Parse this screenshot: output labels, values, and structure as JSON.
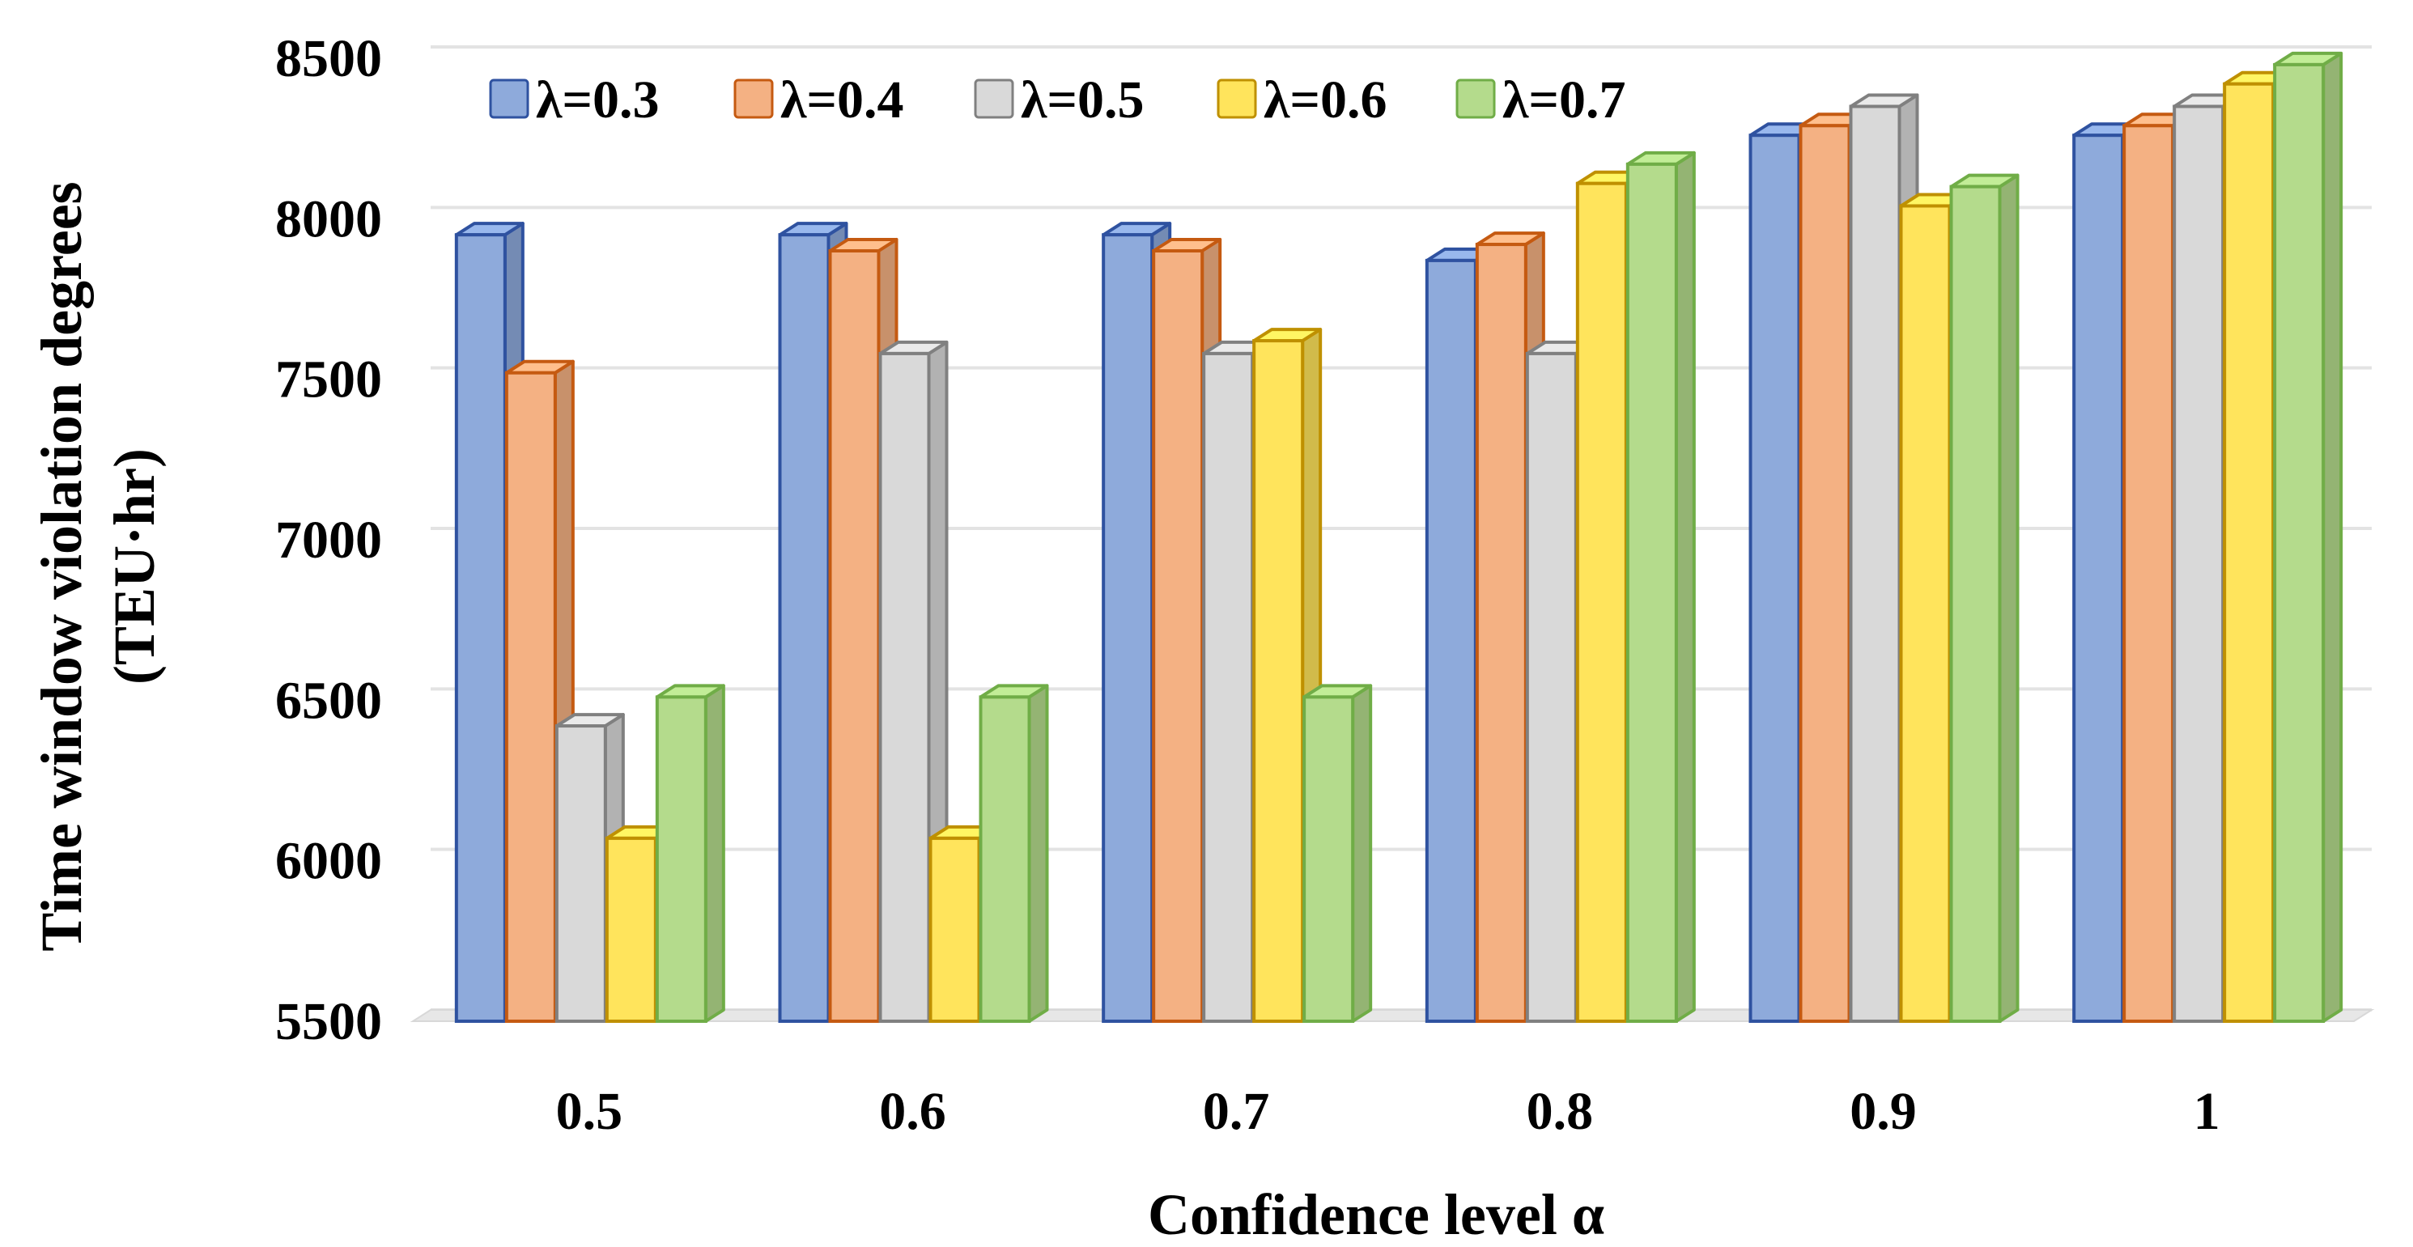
{
  "chart_data": {
    "type": "bar",
    "style": "3d-clustered-column",
    "title": "",
    "xlabel": "Confidence level α",
    "ylabel_line1": "Time window violation degrees",
    "ylabel_line2": "(TEU·hr)",
    "ylim": [
      5500,
      8500
    ],
    "yticks": [
      5500,
      6000,
      6500,
      7000,
      7500,
      8000,
      8500
    ],
    "ytick_labels": [
      "5500",
      "6000",
      "6500",
      "7000",
      "7500",
      "8000",
      "8500"
    ],
    "grid": true,
    "legend_position": "top-left",
    "categories": [
      "0.5",
      "0.6",
      "0.7",
      "0.8",
      "0.9",
      "1"
    ],
    "series": [
      {
        "name": "λ=0.3",
        "color": "#8eaadb",
        "stroke": "#2f52a0",
        "values": [
          7950,
          7950,
          7950,
          7870,
          8260,
          8260
        ]
      },
      {
        "name": "λ=0.4",
        "color": "#f4b183",
        "stroke": "#c55a11",
        "values": [
          7520,
          7900,
          7900,
          7920,
          8290,
          8290
        ]
      },
      {
        "name": "λ=0.5",
        "color": "#d9d9d9",
        "stroke": "#808080",
        "values": [
          6420,
          7580,
          7580,
          7580,
          8350,
          8350
        ]
      },
      {
        "name": "λ=0.6",
        "color": "#ffe45c",
        "stroke": "#bf9000",
        "values": [
          6070,
          6070,
          7620,
          8110,
          8040,
          8420
        ]
      },
      {
        "name": "λ=0.7",
        "color": "#b4db8c",
        "stroke": "#70ad47",
        "values": [
          6510,
          6510,
          6510,
          8170,
          8100,
          8480
        ]
      }
    ]
  }
}
